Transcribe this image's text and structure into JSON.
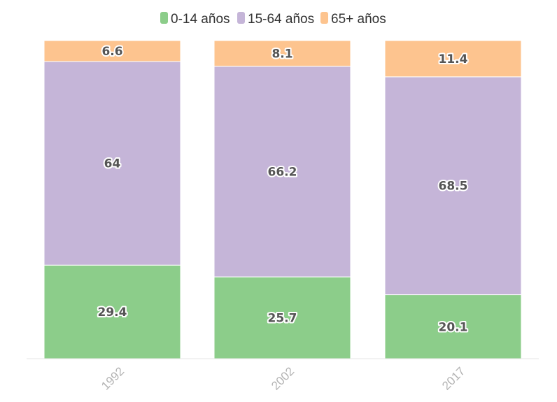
{
  "chart_data": {
    "type": "bar",
    "stacked": true,
    "stack_mode": "percent",
    "categories": [
      "1992",
      "2002",
      "2017"
    ],
    "series": [
      {
        "name": "0-14 años",
        "color": "#8ccd8a",
        "values": [
          29.4,
          25.7,
          20.1
        ]
      },
      {
        "name": "15-64 años",
        "color": "#c5b5d8",
        "values": [
          64,
          66.2,
          68.5
        ]
      },
      {
        "name": "65+ años",
        "color": "#fdc48f",
        "values": [
          6.6,
          8.1,
          11.4
        ]
      }
    ],
    "data_labels": [
      [
        "29.4",
        "25.7",
        "20.1"
      ],
      [
        "64",
        "66.2",
        "68.5"
      ],
      [
        "6.6",
        "8.1",
        "11.4"
      ]
    ],
    "legend_position": "top-center",
    "grid": false,
    "ylim": [
      0,
      100
    ]
  }
}
